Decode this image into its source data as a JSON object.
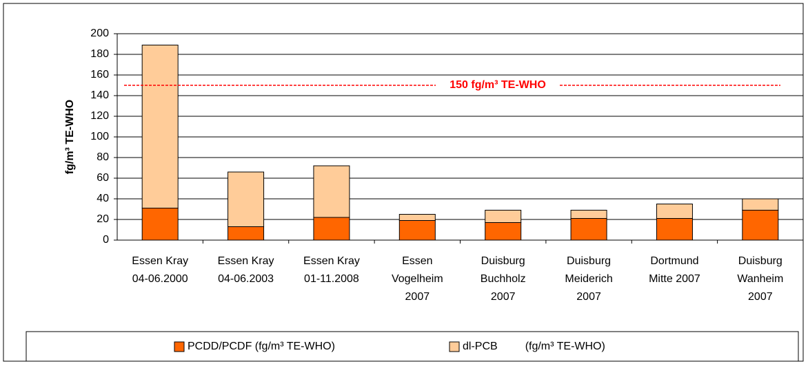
{
  "chart_data": {
    "type": "stacked-bar",
    "y_label": "fg/m³ TE-WHO",
    "categories": [
      [
        "Essen Kray",
        "04-06.2000"
      ],
      [
        "Essen Kray",
        "04-06.2003"
      ],
      [
        "Essen Kray",
        "01-11.2008"
      ],
      [
        "Essen",
        "Vogelheim",
        "2007"
      ],
      [
        "Duisburg",
        "Buchholz",
        "2007"
      ],
      [
        "Duisburg",
        "Meiderich",
        "2007"
      ],
      [
        "Dortmund",
        "Mitte 2007"
      ],
      [
        "Duisburg",
        "Wanheim",
        "2007"
      ]
    ],
    "series": [
      {
        "name": "PCDD/PCDF (fg/m³ TE-WHO)",
        "color": "#ff6600",
        "values": [
          31,
          13,
          22,
          19,
          17,
          21,
          21,
          29
        ]
      },
      {
        "name": "dl-PCB         (fg/m³ TE-WHO)",
        "color": "#ffcc99",
        "values": [
          158,
          53,
          50,
          6,
          12,
          8,
          14,
          11
        ]
      }
    ],
    "reference_line": {
      "value": 150,
      "label": "150 fg/m³ TE-WHO",
      "color": "#ff0000"
    },
    "ylim": [
      0,
      200
    ],
    "yticks": [
      0,
      20,
      40,
      60,
      80,
      100,
      120,
      140,
      160,
      180,
      200
    ],
    "grid": true
  }
}
